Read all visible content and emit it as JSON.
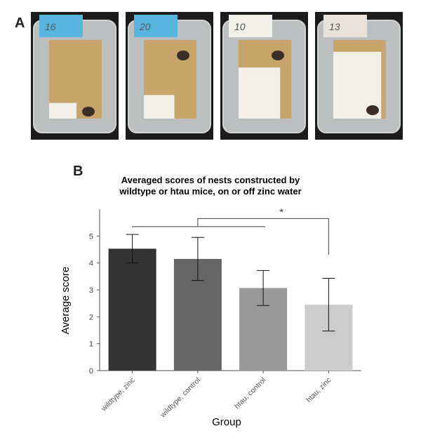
{
  "panels": {
    "a_label": "A",
    "b_label": "B"
  },
  "photos": [
    {
      "label": "16",
      "card_color": "#5ab4e0",
      "bedding_level": 0.2
    },
    {
      "label": "20",
      "card_color": "#5ab4e0",
      "bedding_level": 0.3
    },
    {
      "label": "10",
      "card_color": "#f2f0ea",
      "bedding_level": 0.65
    },
    {
      "label": "13",
      "card_color": "#e8e2da",
      "bedding_level": 0.85
    }
  ],
  "chart_data": {
    "type": "bar",
    "title_line1": "Averaged scores of nests constructed by",
    "title_line2": "wildtype or htau mice, on or off zinc water",
    "xlabel": "Group",
    "ylabel": "Average score",
    "categories": [
      "wildtype, zinc",
      "wildtype, control",
      "htau, control",
      "htau, zinc"
    ],
    "values": [
      4.53,
      4.15,
      3.07,
      2.45
    ],
    "errors": [
      0.53,
      0.8,
      0.65,
      0.98
    ],
    "colors": [
      "#333333",
      "#666666",
      "#999999",
      "#cccccc"
    ],
    "ylim": [
      0,
      6
    ],
    "yticks": [
      "0",
      "1",
      "2",
      "3",
      "4",
      "5"
    ],
    "significance": {
      "label": "*"
    },
    "grid": false
  }
}
